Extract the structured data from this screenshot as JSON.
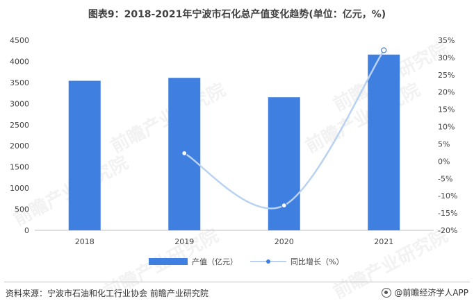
{
  "title": "图表9：2018-2021年宁波市石化总产值变化趋势(单位：亿元，%)",
  "source": "资料来源：宁波市石油和化工行业协会 前瞻产业研究院",
  "brand": "@前瞻经济学人APP",
  "watermark": "前瞻产业研究院",
  "chart_data": {
    "type": "bar",
    "categories": [
      "2018",
      "2019",
      "2020",
      "2021"
    ],
    "series": [
      {
        "name": "产值（亿元）",
        "type": "bar",
        "axis": "left",
        "color": "#3f7fe0",
        "values": [
          3540,
          3610,
          3150,
          4160
        ]
      },
      {
        "name": "同比增长（%）",
        "type": "line",
        "axis": "right",
        "color": "#b9d2f2",
        "values": [
          null,
          2.3,
          -12.8,
          32.1
        ]
      }
    ],
    "y_left": {
      "min": 0,
      "max": 4500,
      "step": 500,
      "ticks": [
        "0",
        "500",
        "1000",
        "1500",
        "2000",
        "2500",
        "3000",
        "3500",
        "4000",
        "4500"
      ]
    },
    "y_right": {
      "min": -20,
      "max": 35,
      "step": 5,
      "ticks": [
        "-20%",
        "-15%",
        "-10%",
        "-5%",
        "0%",
        "5%",
        "10%",
        "15%",
        "20%",
        "25%",
        "30%",
        "35%"
      ]
    },
    "legend": {
      "position": "bottom",
      "items": [
        "产值（亿元）",
        "同比增长（%）"
      ]
    },
    "grid": false
  }
}
